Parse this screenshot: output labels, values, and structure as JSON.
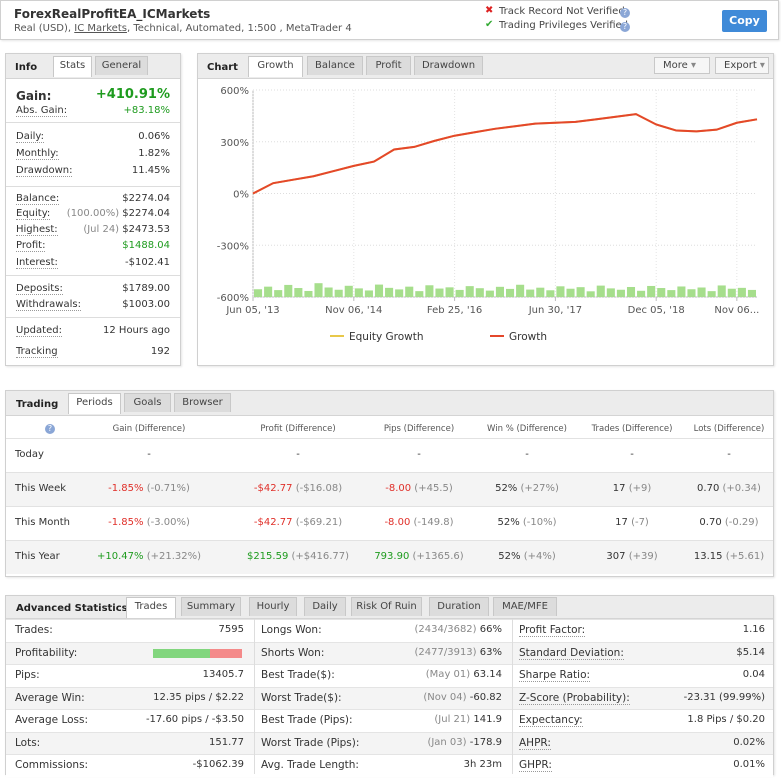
{
  "header": {
    "title": "ForexRealProfitEA_ICMarkets",
    "subtitle": {
      "pre": "Real (USD), ",
      "broker": "IC Markets",
      "post": ", Technical, Automated, 1:500 , MetaTrader 4"
    },
    "status": [
      "Track Record Not Verified",
      "Trading Privileges Verified"
    ],
    "copy": "Copy"
  },
  "info": {
    "label": "Info",
    "tabs": [
      "Stats",
      "General"
    ],
    "groups": [
      [
        {
          "label": "Gain:",
          "value": "+410.91%",
          "color": "#1e9b1e"
        },
        {
          "label": "Abs. Gain:",
          "value": "+83.18%",
          "color": "#1e9b1e"
        }
      ],
      [
        {
          "label": "Daily:",
          "value": "0.06%"
        },
        {
          "label": "Monthly:",
          "value": "1.82%"
        },
        {
          "label": "Drawdown:",
          "value": "11.45%"
        }
      ],
      [
        {
          "label": "Balance:",
          "value": "$2274.04"
        },
        {
          "label": "Equity:",
          "note": "(100.00%)",
          "value": "$2274.04"
        },
        {
          "label": "Highest:",
          "note": "(Jul 24)",
          "value": "$2473.53"
        },
        {
          "label": "Profit:",
          "value": "$1488.04",
          "color": "#1e9b1e"
        },
        {
          "label": "Interest:",
          "value": "-$102.41"
        }
      ],
      [
        {
          "label": "Deposits:",
          "value": "$1789.00"
        },
        {
          "label": "Withdrawals:",
          "value": "$1003.00"
        }
      ],
      [
        {
          "label": "Updated:",
          "value": "12 Hours ago"
        },
        {
          "label": "Tracking",
          "value": "192"
        }
      ]
    ]
  },
  "chart_panel": {
    "label": "Chart",
    "tabs": [
      "Growth",
      "Balance",
      "Profit",
      "Drawdown"
    ],
    "buttons": [
      "More",
      "Export"
    ]
  },
  "chart_data": {
    "type": "line",
    "ylim": [
      -600,
      600
    ],
    "yticks": [
      {
        "value": 600,
        "label": "600%"
      },
      {
        "value": 300,
        "label": "300%"
      },
      {
        "value": 0,
        "label": "0%"
      },
      {
        "value": -300,
        "label": "-300%"
      },
      {
        "value": -600,
        "label": "-600%"
      }
    ],
    "xlim": [
      0,
      25
    ],
    "xticks": [
      {
        "value": 0,
        "label": "Jun 05, '13"
      },
      {
        "value": 5,
        "label": "Nov 06, '14"
      },
      {
        "value": 10,
        "label": "Feb 25, '16"
      },
      {
        "value": 15,
        "label": "Jun 30, '17"
      },
      {
        "value": 20,
        "label": "Dec 05, '18"
      },
      {
        "value": 24,
        "label": "Nov 06..."
      }
    ],
    "grid": true,
    "series": [
      {
        "name": "Equity Growth",
        "color": "#e8c84a",
        "values": [
          0,
          60,
          80,
          100,
          130,
          160,
          185,
          255,
          270,
          305,
          335,
          355,
          375,
          390,
          405,
          410,
          415,
          430,
          445,
          460,
          400,
          365,
          360,
          370,
          410,
          430
        ]
      },
      {
        "name": "Growth",
        "color": "#e4472b",
        "values": [
          0,
          60,
          80,
          100,
          130,
          160,
          185,
          255,
          270,
          305,
          335,
          355,
          375,
          390,
          405,
          410,
          415,
          430,
          445,
          460,
          400,
          365,
          360,
          370,
          410,
          430
        ]
      }
    ],
    "bars": {
      "color": "#a6de8c",
      "values": [
        -555,
        -540,
        -560,
        -530,
        -548,
        -565,
        -520,
        -545,
        -558,
        -535,
        -550,
        -562,
        -528,
        -547,
        -556,
        -540,
        -566,
        -532,
        -551,
        -544,
        -559,
        -537,
        -549,
        -563,
        -541,
        -553,
        -529,
        -557,
        -546,
        -561,
        -538,
        -552,
        -543,
        -567,
        -534,
        -550,
        -558,
        -542,
        -564,
        -536,
        -548,
        -560,
        -539,
        -555,
        -545,
        -566,
        -533,
        -552,
        -547,
        -559
      ]
    }
  },
  "trading": {
    "label": "Trading",
    "tabs": [
      "Periods",
      "Goals",
      "Browser"
    ],
    "columns": [
      "Gain (Difference)",
      "Profit (Difference)",
      "Pips (Difference)",
      "Win % (Difference)",
      "Trades (Difference)",
      "Lots (Difference)"
    ],
    "rows": [
      {
        "label": "Today",
        "cells": [
          {
            "main": "-"
          },
          {
            "main": "-"
          },
          {
            "main": "-"
          },
          {
            "main": "-"
          },
          {
            "main": "-"
          },
          {
            "main": "-"
          }
        ]
      },
      {
        "label": "This Week",
        "cells": [
          {
            "main": "-1.85%",
            "diff": "(-0.71%)"
          },
          {
            "main": "-$42.77",
            "diff": "(-$16.08)"
          },
          {
            "main": "-8.00",
            "diff": "(+45.5)"
          },
          {
            "main": "52%",
            "diff": "(+27%)"
          },
          {
            "main": "17",
            "diff": "(+9)"
          },
          {
            "main": "0.70",
            "diff": "(+0.34)"
          }
        ]
      },
      {
        "label": "This Month",
        "cells": [
          {
            "main": "-1.85%",
            "diff": "(-3.00%)"
          },
          {
            "main": "-$42.77",
            "diff": "(-$69.21)"
          },
          {
            "main": "-8.00",
            "diff": "(-149.8)"
          },
          {
            "main": "52%",
            "diff": "(-10%)"
          },
          {
            "main": "17",
            "diff": "(-7)"
          },
          {
            "main": "0.70",
            "diff": "(-0.29)"
          }
        ]
      },
      {
        "label": "This Year",
        "cells": [
          {
            "main": "+10.47%",
            "diff": "(+21.32%)"
          },
          {
            "main": "$215.59",
            "diff": "(+$416.77)"
          },
          {
            "main": "793.90",
            "diff": "(+1365.6)"
          },
          {
            "main": "52%",
            "diff": "(+4%)"
          },
          {
            "main": "307",
            "diff": "(+39)"
          },
          {
            "main": "13.15",
            "diff": "(+5.61)"
          }
        ]
      }
    ]
  },
  "advanced": {
    "label": "Advanced Statistics",
    "tabs": [
      "Trades",
      "Summary",
      "Hourly",
      "Daily",
      "Risk Of Ruin",
      "Duration",
      "MAE/MFE"
    ],
    "columns": [
      [
        {
          "label": "Trades:",
          "value": "7595"
        },
        {
          "label": "Profitability:",
          "bar": 64
        },
        {
          "label": "Pips:",
          "value": "13405.7"
        },
        {
          "label": "Average Win:",
          "value": "12.35 pips / $2.22"
        },
        {
          "label": "Average Loss:",
          "value": "-17.60 pips / -$3.50"
        },
        {
          "label": "Lots:",
          "value": "151.77"
        },
        {
          "label": "Commissions:",
          "value": "-$1062.39"
        }
      ],
      [
        {
          "label": "Longs Won:",
          "note": "(2434/3682)",
          "value": "66%"
        },
        {
          "label": "Shorts Won:",
          "note": "(2477/3913)",
          "value": "63%"
        },
        {
          "label": "Best Trade($):",
          "note": "(May 01)",
          "value": "63.14"
        },
        {
          "label": "Worst Trade($):",
          "note": "(Nov 04)",
          "value": "-60.82"
        },
        {
          "label": "Best Trade (Pips):",
          "note": "(Jul 21)",
          "value": "141.9"
        },
        {
          "label": "Worst Trade (Pips):",
          "note": "(Jan 03)",
          "value": "-178.9"
        },
        {
          "label": "Avg. Trade Length:",
          "value": "3h 23m"
        }
      ],
      [
        {
          "label": "Profit Factor:",
          "value": "1.16"
        },
        {
          "label": "Standard Deviation:",
          "value": "$5.14"
        },
        {
          "label": "Sharpe Ratio:",
          "value": "0.04"
        },
        {
          "label": "Z-Score (Probability):",
          "value": "-23.31 (99.99%)"
        },
        {
          "label": "Expectancy:",
          "value": "1.8 Pips / $0.20"
        },
        {
          "label": "AHPR:",
          "value": "0.02%"
        },
        {
          "label": "GHPR:",
          "value": "0.01%"
        }
      ]
    ]
  }
}
